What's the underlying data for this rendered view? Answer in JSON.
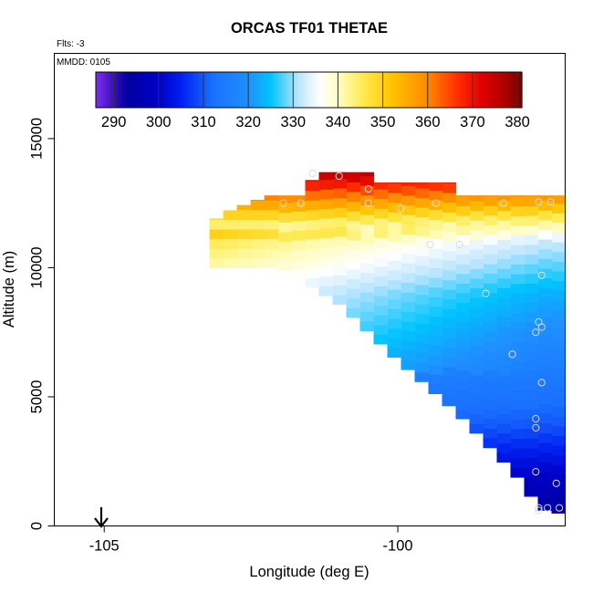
{
  "chart_data": {
    "type": "heatmap",
    "title": "ORCAS TF01 THETAE",
    "subtitle": "Flts: -3",
    "annotation": "MMDD: 0105",
    "xlabel": "Longitude (deg E)",
    "ylabel": "Altitude (m)",
    "xlim": [
      -105.85,
      -97.15
    ],
    "ylim": [
      0,
      18300
    ],
    "x_ticks": [
      {
        "value": -105,
        "label": "-105"
      },
      {
        "value": -100,
        "label": "-100"
      }
    ],
    "y_ticks": [
      {
        "value": 0,
        "label": "0"
      },
      {
        "value": 5000,
        "label": "5000"
      },
      {
        "value": 10000,
        "label": "10000"
      },
      {
        "value": 15000,
        "label": "15000"
      }
    ],
    "colorbar": {
      "range": [
        286,
        381
      ],
      "ticks": [
        {
          "value": 290,
          "label": "290"
        },
        {
          "value": 300,
          "label": "300"
        },
        {
          "value": 310,
          "label": "310"
        },
        {
          "value": 320,
          "label": "320"
        },
        {
          "value": 330,
          "label": "330"
        },
        {
          "value": 340,
          "label": "340"
        },
        {
          "value": 350,
          "label": "350"
        },
        {
          "value": 360,
          "label": "360"
        },
        {
          "value": 370,
          "label": "370"
        },
        {
          "value": 380,
          "label": "380"
        }
      ],
      "stops": [
        {
          "value": 286,
          "color": "#7b2ff0"
        },
        {
          "value": 290,
          "color": "#3a0fb8"
        },
        {
          "value": 293,
          "color": "#0000a0"
        },
        {
          "value": 300,
          "color": "#0000c8"
        },
        {
          "value": 305,
          "color": "#0020f0"
        },
        {
          "value": 312,
          "color": "#1a70ff"
        },
        {
          "value": 320,
          "color": "#1e90ff"
        },
        {
          "value": 325,
          "color": "#00c4ff"
        },
        {
          "value": 331,
          "color": "#b8e4ff"
        },
        {
          "value": 336,
          "color": "#ffffff"
        },
        {
          "value": 341,
          "color": "#fffbb0"
        },
        {
          "value": 346,
          "color": "#ffe84a"
        },
        {
          "value": 352,
          "color": "#ffc400"
        },
        {
          "value": 360,
          "color": "#ff8800"
        },
        {
          "value": 367,
          "color": "#ff2a00"
        },
        {
          "value": 372,
          "color": "#e00000"
        },
        {
          "value": 377,
          "color": "#b00000"
        },
        {
          "value": 381,
          "color": "#7a0000"
        }
      ]
    },
    "field": {
      "description": "theta-e as function of longitude and altitude",
      "cell_lon": 0.233,
      "cell_alt": 375,
      "top_profile": [
        {
          "lon": -103.25,
          "alt": 11600
        },
        {
          "lon": -103.0,
          "alt": 12100
        },
        {
          "lon": -102.2,
          "alt": 12800
        },
        {
          "lon": -101.6,
          "alt": 12800
        },
        {
          "lon": -101.5,
          "alt": 13200
        },
        {
          "lon": -101.4,
          "alt": 13700
        },
        {
          "lon": -100.5,
          "alt": 13700
        },
        {
          "lon": -100.5,
          "alt": 13300
        },
        {
          "lon": -99.0,
          "alt": 13300
        },
        {
          "lon": -99.0,
          "alt": 12800
        },
        {
          "lon": -97.15,
          "alt": 12800
        }
      ],
      "bottom_profile": [
        {
          "lon": -102.0,
          "alt": 10000
        },
        {
          "lon": -101.0,
          "alt": 8600
        },
        {
          "lon": -100.0,
          "alt": 6400
        },
        {
          "lon": -99.0,
          "alt": 4400
        },
        {
          "lon": -98.0,
          "alt": 2000
        },
        {
          "lon": -97.7,
          "alt": 1050
        },
        {
          "lon": -97.45,
          "alt": 500
        },
        {
          "lon": -97.15,
          "alt": 500
        }
      ]
    },
    "points": [
      {
        "lon": -101.45,
        "alt": 13650
      },
      {
        "lon": -101.0,
        "alt": 13550
      },
      {
        "lon": -100.5,
        "alt": 13050
      },
      {
        "lon": -101.95,
        "alt": 12500
      },
      {
        "lon": -101.65,
        "alt": 12500
      },
      {
        "lon": -100.5,
        "alt": 12500
      },
      {
        "lon": -99.95,
        "alt": 12300
      },
      {
        "lon": -99.35,
        "alt": 12500
      },
      {
        "lon": -98.2,
        "alt": 12500
      },
      {
        "lon": -97.6,
        "alt": 12550
      },
      {
        "lon": -97.4,
        "alt": 12550
      },
      {
        "lon": -99.45,
        "alt": 10900
      },
      {
        "lon": -98.95,
        "alt": 10900
      },
      {
        "lon": -97.55,
        "alt": 9700
      },
      {
        "lon": -98.5,
        "alt": 9000
      },
      {
        "lon": -97.6,
        "alt": 7900
      },
      {
        "lon": -97.55,
        "alt": 7700
      },
      {
        "lon": -97.65,
        "alt": 7500
      },
      {
        "lon": -98.05,
        "alt": 6650
      },
      {
        "lon": -97.55,
        "alt": 5550
      },
      {
        "lon": -97.65,
        "alt": 4150
      },
      {
        "lon": -97.65,
        "alt": 3800
      },
      {
        "lon": -97.65,
        "alt": 2100
      },
      {
        "lon": -97.3,
        "alt": 1650
      },
      {
        "lon": -97.6,
        "alt": 700
      },
      {
        "lon": -97.6,
        "alt": 600
      },
      {
        "lon": -97.45,
        "alt": 700
      },
      {
        "lon": -97.25,
        "alt": 700
      }
    ],
    "marker": {
      "lon": -105.05,
      "label": "arrow"
    }
  }
}
